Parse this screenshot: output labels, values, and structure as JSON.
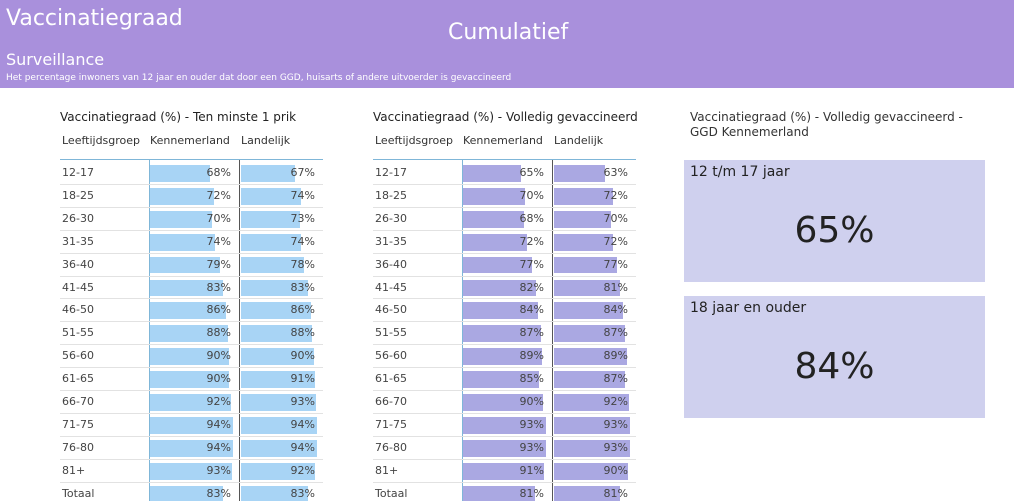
{
  "header": {
    "title": "Vaccinatiegraad",
    "subtitle": "Surveillance",
    "description": "Het percentage inwoners van 12 jaar en ouder dat door een GGD, huisarts of andere uitvoerder is gevaccineerd",
    "center_title": "Cumulatief"
  },
  "tables": [
    {
      "title": "Vaccinatiegraad (%) - Ten minste 1 prik",
      "color": "#a8d4f5",
      "columns": [
        "Leeftijdsgroep",
        "Kennemerland",
        "Landelijk"
      ],
      "rows": [
        {
          "group": "12-17",
          "kennemerland": {
            "value": 68,
            "label": "68%"
          },
          "landelijk": {
            "value": 67,
            "label": "67%"
          }
        },
        {
          "group": "18-25",
          "kennemerland": {
            "value": 72,
            "label": "72%"
          },
          "landelijk": {
            "value": 74,
            "label": "74%"
          }
        },
        {
          "group": "26-30",
          "kennemerland": {
            "value": 70,
            "label": "70%"
          },
          "landelijk": {
            "value": 73,
            "label": "73%"
          }
        },
        {
          "group": "31-35",
          "kennemerland": {
            "value": 74,
            "label": "74%"
          },
          "landelijk": {
            "value": 74,
            "label": "74%"
          }
        },
        {
          "group": "36-40",
          "kennemerland": {
            "value": 79,
            "label": "79%"
          },
          "landelijk": {
            "value": 78,
            "label": "78%"
          }
        },
        {
          "group": "41-45",
          "kennemerland": {
            "value": 83,
            "label": "83%"
          },
          "landelijk": {
            "value": 83,
            "label": "83%"
          }
        },
        {
          "group": "46-50",
          "kennemerland": {
            "value": 86,
            "label": "86%"
          },
          "landelijk": {
            "value": 86,
            "label": "86%"
          }
        },
        {
          "group": "51-55",
          "kennemerland": {
            "value": 88,
            "label": "88%"
          },
          "landelijk": {
            "value": 88,
            "label": "88%"
          }
        },
        {
          "group": "56-60",
          "kennemerland": {
            "value": 90,
            "label": "90%"
          },
          "landelijk": {
            "value": 90,
            "label": "90%"
          }
        },
        {
          "group": "61-65",
          "kennemerland": {
            "value": 90,
            "label": "90%"
          },
          "landelijk": {
            "value": 91,
            "label": "91%"
          }
        },
        {
          "group": "66-70",
          "kennemerland": {
            "value": 92,
            "label": "92%"
          },
          "landelijk": {
            "value": 93,
            "label": "93%"
          }
        },
        {
          "group": "71-75",
          "kennemerland": {
            "value": 94,
            "label": "94%"
          },
          "landelijk": {
            "value": 94,
            "label": "94%"
          }
        },
        {
          "group": "76-80",
          "kennemerland": {
            "value": 94,
            "label": "94%"
          },
          "landelijk": {
            "value": 94,
            "label": "94%"
          }
        },
        {
          "group": "81+",
          "kennemerland": {
            "value": 93,
            "label": "93%"
          },
          "landelijk": {
            "value": 92,
            "label": "92%"
          }
        },
        {
          "group": "Totaal",
          "kennemerland": {
            "value": 83,
            "label": "83%"
          },
          "landelijk": {
            "value": 83,
            "label": "83%"
          }
        }
      ]
    },
    {
      "title": "Vaccinatiegraad (%) - Volledig gevaccineerd",
      "color": "#aaa8e2",
      "columns": [
        "Leeftijdsgroep",
        "Kennemerland",
        "Landelijk"
      ],
      "rows": [
        {
          "group": "12-17",
          "kennemerland": {
            "value": 65,
            "label": "65%"
          },
          "landelijk": {
            "value": 63,
            "label": "63%"
          }
        },
        {
          "group": "18-25",
          "kennemerland": {
            "value": 70,
            "label": "70%"
          },
          "landelijk": {
            "value": 72,
            "label": "72%"
          }
        },
        {
          "group": "26-30",
          "kennemerland": {
            "value": 68,
            "label": "68%"
          },
          "landelijk": {
            "value": 70,
            "label": "70%"
          }
        },
        {
          "group": "31-35",
          "kennemerland": {
            "value": 72,
            "label": "72%"
          },
          "landelijk": {
            "value": 72,
            "label": "72%"
          }
        },
        {
          "group": "36-40",
          "kennemerland": {
            "value": 77,
            "label": "77%"
          },
          "landelijk": {
            "value": 77,
            "label": "77%"
          }
        },
        {
          "group": "41-45",
          "kennemerland": {
            "value": 82,
            "label": "82%"
          },
          "landelijk": {
            "value": 81,
            "label": "81%"
          }
        },
        {
          "group": "46-50",
          "kennemerland": {
            "value": 84,
            "label": "84%"
          },
          "landelijk": {
            "value": 84,
            "label": "84%"
          }
        },
        {
          "group": "51-55",
          "kennemerland": {
            "value": 87,
            "label": "87%"
          },
          "landelijk": {
            "value": 87,
            "label": "87%"
          }
        },
        {
          "group": "56-60",
          "kennemerland": {
            "value": 89,
            "label": "89%"
          },
          "landelijk": {
            "value": 89,
            "label": "89%"
          }
        },
        {
          "group": "61-65",
          "kennemerland": {
            "value": 85,
            "label": "85%"
          },
          "landelijk": {
            "value": 87,
            "label": "87%"
          }
        },
        {
          "group": "66-70",
          "kennemerland": {
            "value": 90,
            "label": "90%"
          },
          "landelijk": {
            "value": 92,
            "label": "92%"
          }
        },
        {
          "group": "71-75",
          "kennemerland": {
            "value": 93,
            "label": "93%"
          },
          "landelijk": {
            "value": 93,
            "label": "93%"
          }
        },
        {
          "group": "76-80",
          "kennemerland": {
            "value": 93,
            "label": "93%"
          },
          "landelijk": {
            "value": 93,
            "label": "93%"
          }
        },
        {
          "group": "81+",
          "kennemerland": {
            "value": 91,
            "label": "91%"
          },
          "landelijk": {
            "value": 90,
            "label": "90%"
          }
        },
        {
          "group": "Totaal",
          "kennemerland": {
            "value": 81,
            "label": "81%"
          },
          "landelijk": {
            "value": 81,
            "label": "81%"
          }
        }
      ]
    }
  ],
  "cards": {
    "title": "Vaccinatiegraad (%) - Volledig gevaccineerd - GGD Kennemerland",
    "items": [
      {
        "label": "12 t/m 17 jaar",
        "value": {
          "value": 65,
          "label": "65%"
        }
      },
      {
        "label": "18 jaar en ouder",
        "value": {
          "value": 84,
          "label": "84%"
        }
      }
    ]
  }
}
